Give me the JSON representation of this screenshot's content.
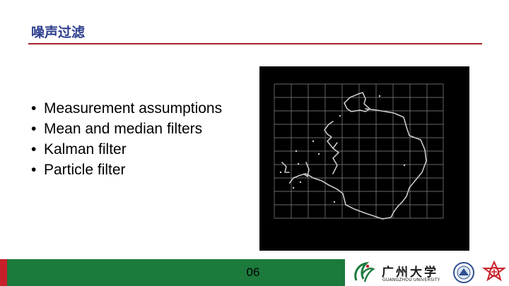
{
  "slide": {
    "title": "噪声过滤",
    "bullets": [
      "Measurement assumptions",
      "Mean and median filters",
      "Kalman filter",
      "Particle filter"
    ]
  },
  "footer": {
    "page_number": "06",
    "university_name_cn": "广州大学",
    "university_name_en": "GUANGZHOU UNIVERSITY"
  },
  "colors": {
    "title": "#2f3f8f",
    "accent_red": "#a3262a",
    "footer_green": "#1c7a3c",
    "footer_red": "#c8202a",
    "plot_background": "#000000",
    "plot_trace": "#cfcfcf"
  },
  "icons": [
    "bullet-dot",
    "university-emblem-icon",
    "university-seal-icon",
    "school-badge-icon"
  ]
}
